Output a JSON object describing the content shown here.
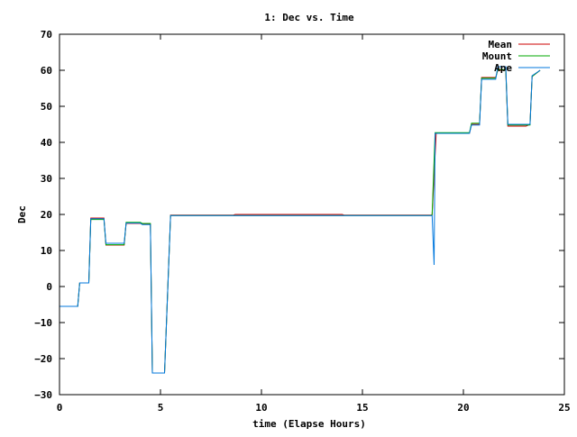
{
  "chart_data": {
    "type": "line",
    "title": "1: Dec vs. Time",
    "xlabel": "time (Elapse Hours)",
    "ylabel": "Dec",
    "xlim": [
      0,
      25
    ],
    "ylim": [
      -30,
      70
    ],
    "x_ticks": [
      0,
      5,
      10,
      15,
      20,
      25
    ],
    "y_ticks": [
      -30,
      -20,
      -10,
      0,
      10,
      20,
      30,
      40,
      50,
      60,
      70
    ],
    "x_tick_labels": [
      "0",
      "5",
      "10",
      "15",
      "20",
      "25"
    ],
    "y_tick_labels": [
      "−30",
      "−20",
      "−10",
      "0",
      "10",
      "20",
      "30",
      "40",
      "50",
      "60",
      "70"
    ],
    "grid": false,
    "legend_position": "top-right",
    "series": [
      {
        "name": "Mean",
        "color": "#cc0000",
        "x": [
          0,
          0.9,
          1.0,
          1.45,
          1.55,
          2.2,
          2.3,
          3.2,
          3.3,
          4.0,
          4.1,
          4.5,
          4.6,
          5.2,
          5.5,
          8.6,
          8.7,
          14.0,
          14.1,
          18.45,
          18.65,
          18.75,
          20.3,
          20.4,
          20.8,
          20.9,
          21.6,
          21.7,
          22.1,
          22.2,
          23.0,
          23.1,
          23.3,
          23.4,
          23.8
        ],
        "y": [
          -5.5,
          -5.5,
          1,
          1,
          19,
          19,
          11.5,
          11.5,
          17.5,
          17.5,
          17.3,
          17.3,
          -24,
          -24,
          19.8,
          19.8,
          20,
          20,
          19.8,
          19.8,
          42.5,
          42.5,
          42.5,
          45,
          45,
          58,
          58,
          60,
          60,
          44.5,
          44.5,
          44.5,
          45,
          58.3,
          60
        ]
      },
      {
        "name": "Mount",
        "color": "#00aa00",
        "x": [
          0,
          0.9,
          1.0,
          1.45,
          1.55,
          2.2,
          2.3,
          3.2,
          3.3,
          4.0,
          4.1,
          4.5,
          4.6,
          5.2,
          5.5,
          18.4,
          18.45,
          18.6,
          18.75,
          20.3,
          20.4,
          20.8,
          20.9,
          21.6,
          21.7,
          22.1,
          22.2,
          23.3,
          23.4,
          23.8
        ],
        "y": [
          -5.5,
          -5.5,
          1,
          1,
          18.6,
          18.6,
          11.6,
          11.6,
          17.8,
          17.8,
          17.5,
          17.5,
          -24,
          -24,
          19.7,
          19.7,
          20,
          42.7,
          42.7,
          42.7,
          45.3,
          45.3,
          57.8,
          57.8,
          60.2,
          60.2,
          44.8,
          44.8,
          58.3,
          60
        ]
      },
      {
        "name": "Ape",
        "color": "#0077dd",
        "x": [
          0,
          0.9,
          1.0,
          1.45,
          1.55,
          2.2,
          2.3,
          3.2,
          3.3,
          4.0,
          4.1,
          4.5,
          4.6,
          5.2,
          5.5,
          18.45,
          18.55,
          18.6,
          18.75,
          20.3,
          20.4,
          20.8,
          20.9,
          21.6,
          21.7,
          22.1,
          22.2,
          23.3,
          23.4,
          23.8
        ],
        "y": [
          -5.5,
          -5.5,
          1,
          1,
          18.8,
          18.8,
          12,
          12,
          17.6,
          17.6,
          17.2,
          17.2,
          -24,
          -24,
          19.7,
          19.7,
          6,
          42.5,
          42.5,
          42.5,
          44.8,
          44.8,
          57.5,
          57.5,
          61,
          61,
          45,
          45,
          58.5,
          60
        ]
      }
    ]
  }
}
